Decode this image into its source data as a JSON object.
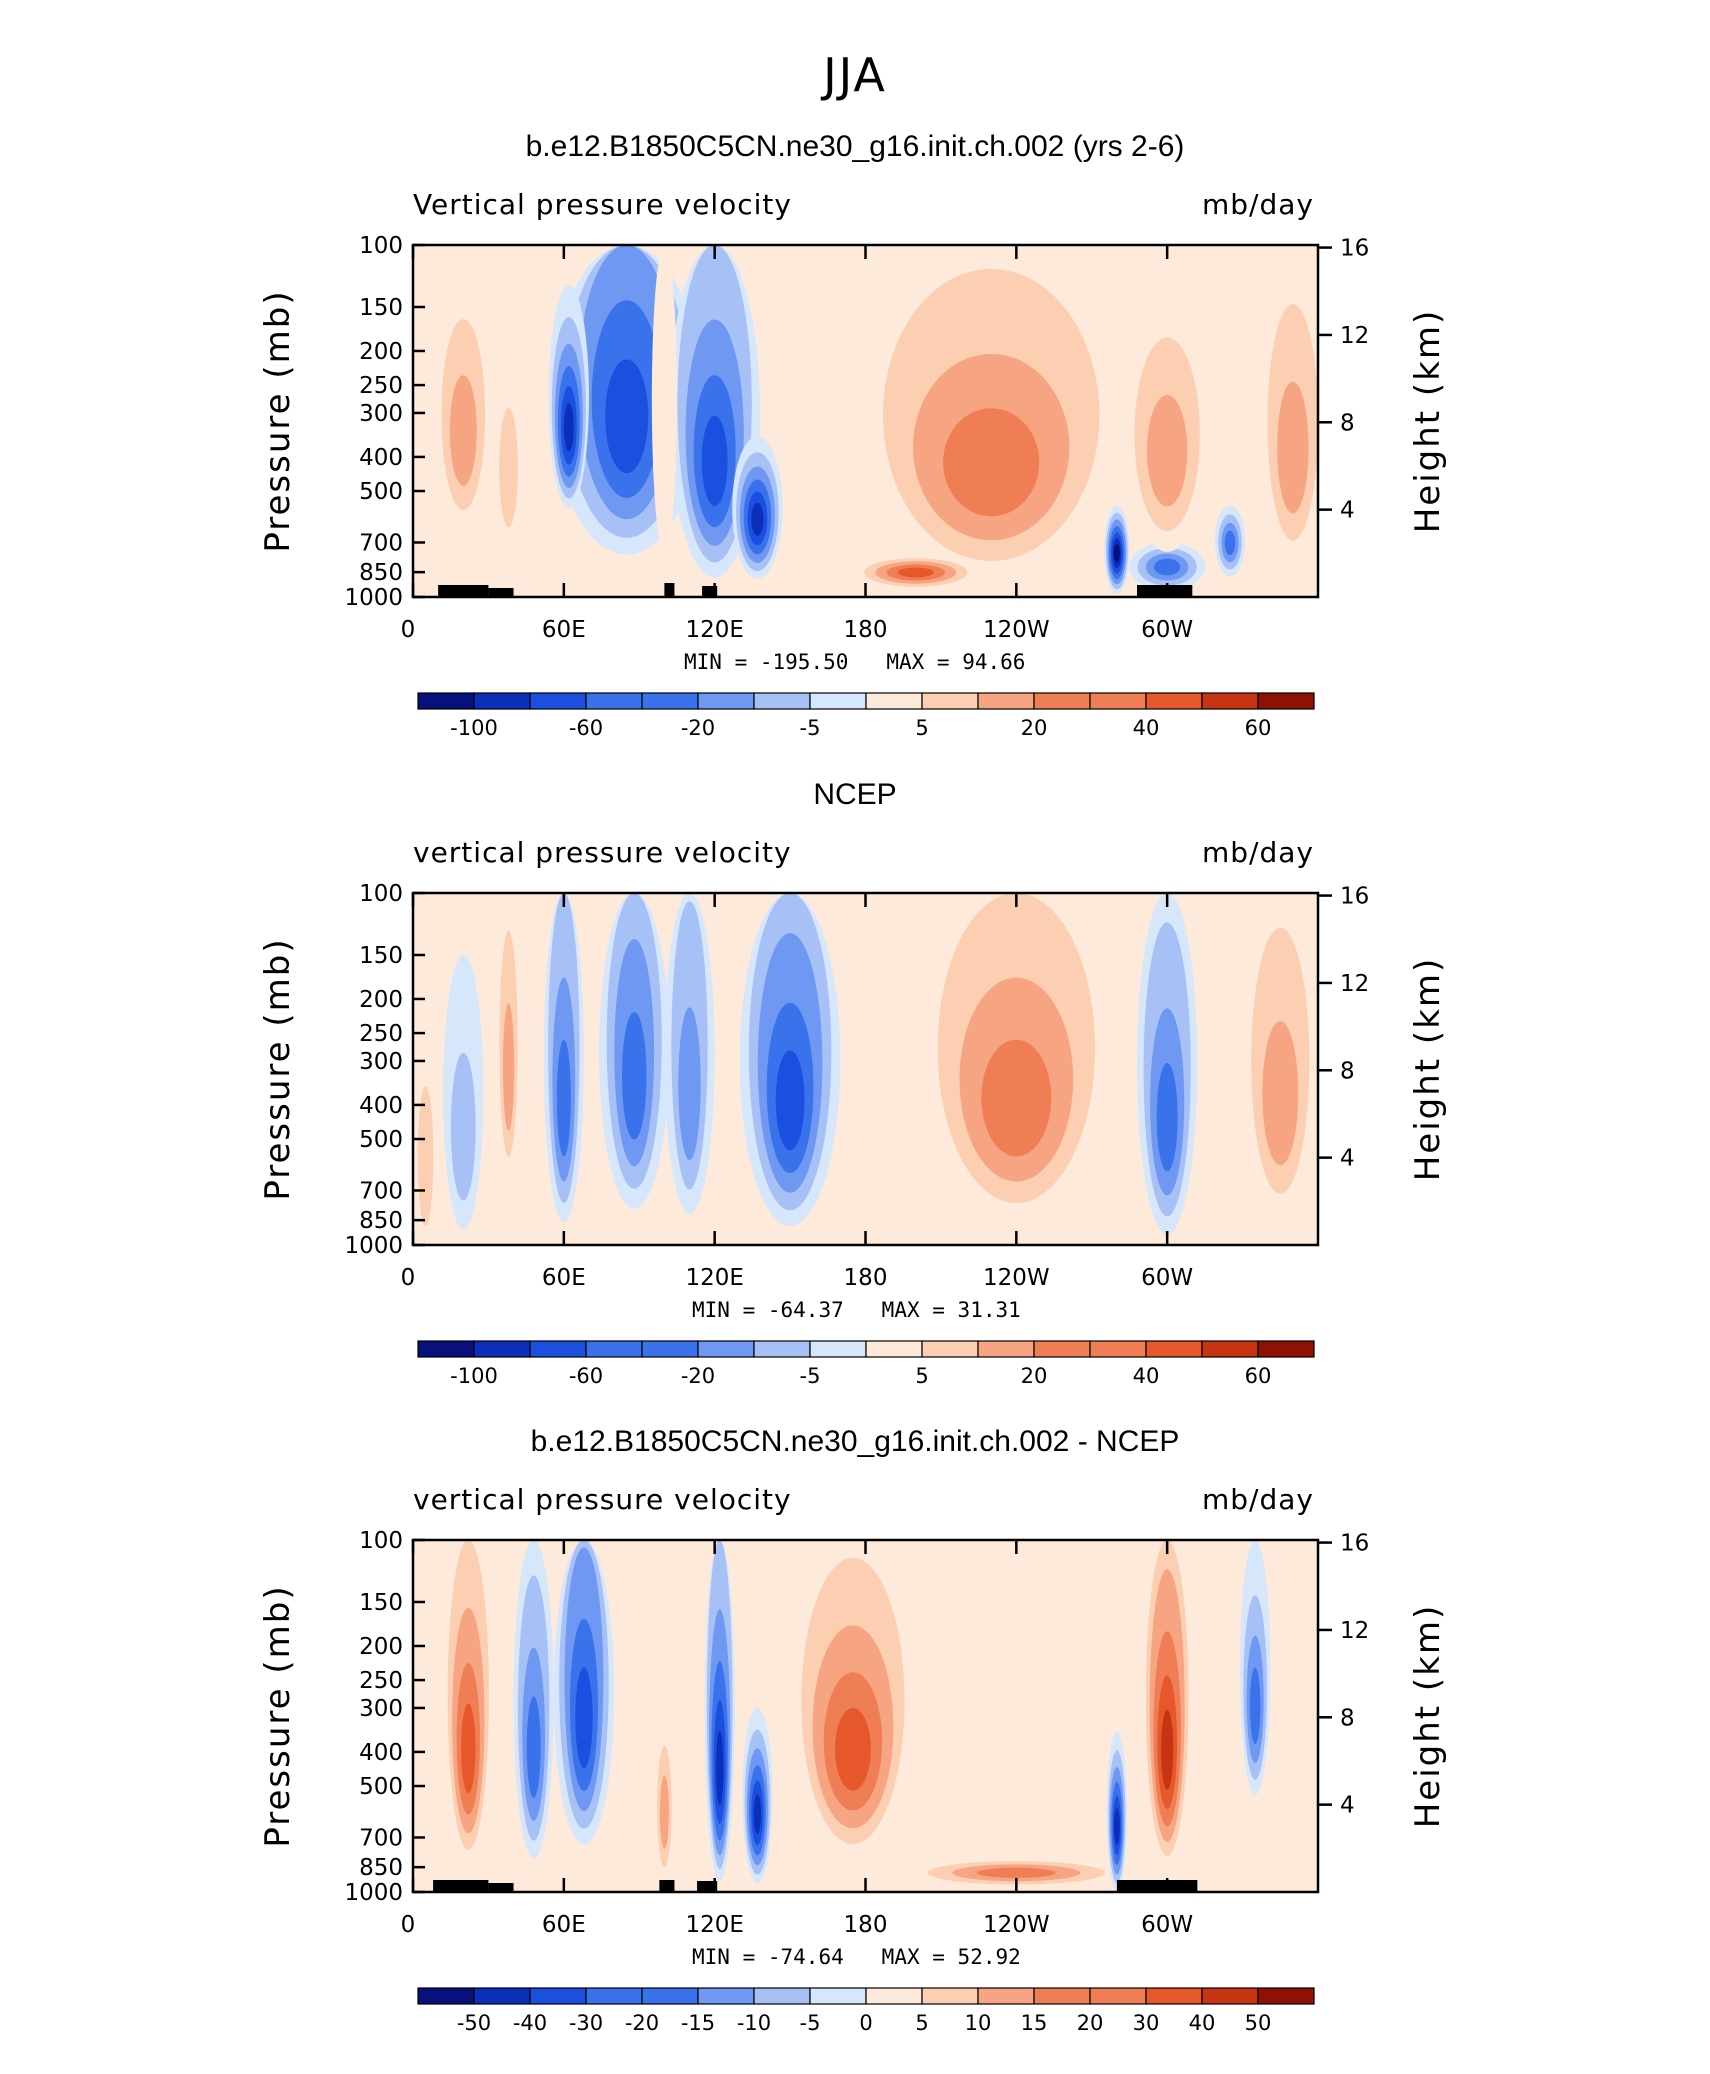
{
  "page_title": "JJA",
  "colors": {
    "main_scale": [
      "#08107c",
      "#0c2fb9",
      "#1a4fe0",
      "#3a72ec",
      "#6e98f2",
      "#a7c1f7",
      "#d6e6fb",
      "#fdeadb",
      "#fccfb3",
      "#f6a482",
      "#f07e55",
      "#e6582c",
      "#c63412",
      "#8e1204"
    ],
    "diff_scale": [
      "#08107c",
      "#0c2fb9",
      "#1a4fe0",
      "#3a72ec",
      "#6e98f2",
      "#a7c1f7",
      "#d6e6fb",
      "#fdeadb",
      "#fccfb3",
      "#f6a482",
      "#f07e55",
      "#e6582c",
      "#c63412",
      "#8e1204"
    ]
  },
  "chart_data": [
    {
      "type": "heatmap",
      "title": "b.e12.B1850C5CN.ne30_g16.init.ch.002 (yrs 2-6)",
      "variable": "Vertical pressure velocity",
      "units": "mb/day",
      "ylabel": "Pressure (mb)",
      "y2label": "Height (km)",
      "x_ticks": [
        "0",
        "60E",
        "120E",
        "180",
        "120W",
        "60W"
      ],
      "y_ticks": [
        "100",
        "150",
        "200",
        "250",
        "300",
        "400",
        "500",
        "700",
        "850",
        "1000"
      ],
      "y2_ticks": [
        "16",
        "12",
        "8",
        "4"
      ],
      "min_label": "MIN =",
      "min_value": "-195.50",
      "max_label": "MAX =",
      "max_value": "94.66",
      "colorbar_labels": [
        "-100",
        "-60",
        "-20",
        "-5",
        "5",
        "20",
        "40",
        "60"
      ],
      "colorbar_label_slots": [
        1,
        3,
        5,
        7,
        9,
        11,
        13,
        15
      ],
      "scale": "main",
      "blobs": [
        {
          "lon": 20,
          "p": 350,
          "w": 12,
          "hp": 260,
          "v": 3
        },
        {
          "lon": 38,
          "p": 450,
          "w": 6,
          "hp": 260,
          "v": 2
        },
        {
          "lon": 85,
          "p": 320,
          "w": 30,
          "hp": 380,
          "v": -5
        },
        {
          "lon": 62,
          "p": 330,
          "w": 8,
          "hp": 200,
          "v": -6
        },
        {
          "lon": 120,
          "p": 420,
          "w": 18,
          "hp": 400,
          "v": -5
        },
        {
          "lon": 137,
          "p": 600,
          "w": 10,
          "hp": 250,
          "v": -6
        },
        {
          "lon": 100,
          "p": 350,
          "w": 5,
          "hp": 350,
          "v": 1
        },
        {
          "lon": 230,
          "p": 430,
          "w": 55,
          "hp": 400,
          "v": 4
        },
        {
          "lon": 200,
          "p": 850,
          "w": 25,
          "hp": 90,
          "v": 5
        },
        {
          "lon": 280,
          "p": 750,
          "w": 5,
          "hp": 200,
          "v": -7
        },
        {
          "lon": 300,
          "p": 820,
          "w": 15,
          "hp": 120,
          "v": -4
        },
        {
          "lon": 325,
          "p": 700,
          "w": 6,
          "hp": 150,
          "v": -4
        },
        {
          "lon": 300,
          "p": 400,
          "w": 18,
          "hp": 300,
          "v": 3
        },
        {
          "lon": 350,
          "p": 400,
          "w": 14,
          "hp": 350,
          "v": 3
        }
      ],
      "topo": [
        [
          10,
          30,
          60
        ],
        [
          30,
          40,
          45
        ],
        [
          100,
          104,
          70
        ],
        [
          115,
          121,
          55
        ],
        [
          288,
          310,
          60
        ]
      ]
    },
    {
      "type": "heatmap",
      "title": "NCEP",
      "variable": "vertical pressure velocity",
      "units": "mb/day",
      "ylabel": "Pressure (mb)",
      "y2label": "Height (km)",
      "x_ticks": [
        "0",
        "60E",
        "120E",
        "180",
        "120W",
        "60W"
      ],
      "y_ticks": [
        "100",
        "150",
        "200",
        "250",
        "300",
        "400",
        "500",
        "700",
        "850",
        "1000"
      ],
      "y2_ticks": [
        "16",
        "12",
        "8",
        "4"
      ],
      "min_label": "MIN =",
      "min_value": "-64.37",
      "max_label": "MAX =",
      "max_value": "31.31",
      "colorbar_labels": [
        "-100",
        "-60",
        "-20",
        "-5",
        "5",
        "20",
        "40",
        "60"
      ],
      "colorbar_label_slots": [
        1,
        3,
        5,
        7,
        9,
        11,
        13,
        15
      ],
      "scale": "main",
      "blobs": [
        {
          "lon": 20,
          "p": 500,
          "w": 8,
          "hp": 350,
          "v": -2
        },
        {
          "lon": 38,
          "p": 330,
          "w": 5,
          "hp": 280,
          "v": 3
        },
        {
          "lon": 60,
          "p": 400,
          "w": 8,
          "hp": 400,
          "v": -4
        },
        {
          "lon": 88,
          "p": 350,
          "w": 14,
          "hp": 380,
          "v": -4
        },
        {
          "lon": 110,
          "p": 380,
          "w": 10,
          "hp": 380,
          "v": -3
        },
        {
          "lon": 150,
          "p": 400,
          "w": 20,
          "hp": 420,
          "v": -5
        },
        {
          "lon": 240,
          "p": 400,
          "w": 40,
          "hp": 400,
          "v": 4
        },
        {
          "lon": 300,
          "p": 450,
          "w": 12,
          "hp": 420,
          "v": -4
        },
        {
          "lon": 345,
          "p": 400,
          "w": 16,
          "hp": 380,
          "v": 3
        },
        {
          "lon": 5,
          "p": 600,
          "w": 5,
          "hp": 400,
          "v": 2
        }
      ],
      "topo": []
    },
    {
      "type": "heatmap",
      "title": "b.e12.B1850C5CN.ne30_g16.init.ch.002 - NCEP",
      "variable": "vertical pressure velocity",
      "units": "mb/day",
      "ylabel": "Pressure (mb)",
      "y2label": "Height (km)",
      "x_ticks": [
        "0",
        "60E",
        "120E",
        "180",
        "120W",
        "60W"
      ],
      "y_ticks": [
        "100",
        "150",
        "200",
        "250",
        "300",
        "400",
        "500",
        "700",
        "850",
        "1000"
      ],
      "y2_ticks": [
        "16",
        "12",
        "8",
        "4"
      ],
      "min_label": "MIN =",
      "min_value": "-74.64",
      "max_label": "MAX =",
      "max_value": "52.92",
      "colorbar_labels": [
        "-50",
        "-40",
        "-30",
        "-20",
        "-15",
        "-10",
        "-5",
        "0",
        "5",
        "10",
        "15",
        "20",
        "30",
        "40",
        "50"
      ],
      "colorbar_label_slots": [
        1,
        2,
        3,
        4,
        5,
        6,
        7,
        8,
        9,
        10,
        11,
        12,
        13,
        14,
        15
      ],
      "scale": "diff",
      "blobs": [
        {
          "lon": 22,
          "p": 400,
          "w": 10,
          "hp": 380,
          "v": 5
        },
        {
          "lon": 48,
          "p": 400,
          "w": 8,
          "hp": 350,
          "v": -4
        },
        {
          "lon": 68,
          "p": 330,
          "w": 12,
          "hp": 350,
          "v": -5
        },
        {
          "lon": 100,
          "p": 600,
          "w": 4,
          "hp": 300,
          "v": 3
        },
        {
          "lon": 122,
          "p": 450,
          "w": 6,
          "hp": 420,
          "v": -6
        },
        {
          "lon": 137,
          "p": 600,
          "w": 6,
          "hp": 300,
          "v": -6
        },
        {
          "lon": 175,
          "p": 400,
          "w": 25,
          "hp": 350,
          "v": 5
        },
        {
          "lon": 240,
          "p": 880,
          "w": 45,
          "hp": 80,
          "v": 4
        },
        {
          "lon": 280,
          "p": 650,
          "w": 4,
          "hp": 300,
          "v": -6
        },
        {
          "lon": 300,
          "p": 400,
          "w": 10,
          "hp": 400,
          "v": 6
        },
        {
          "lon": 335,
          "p": 300,
          "w": 6,
          "hp": 200,
          "v": -4
        }
      ],
      "topo": [
        [
          8,
          30,
          60
        ],
        [
          30,
          40,
          45
        ],
        [
          98,
          104,
          60
        ],
        [
          113,
          121,
          55
        ],
        [
          280,
          312,
          60
        ]
      ]
    }
  ]
}
